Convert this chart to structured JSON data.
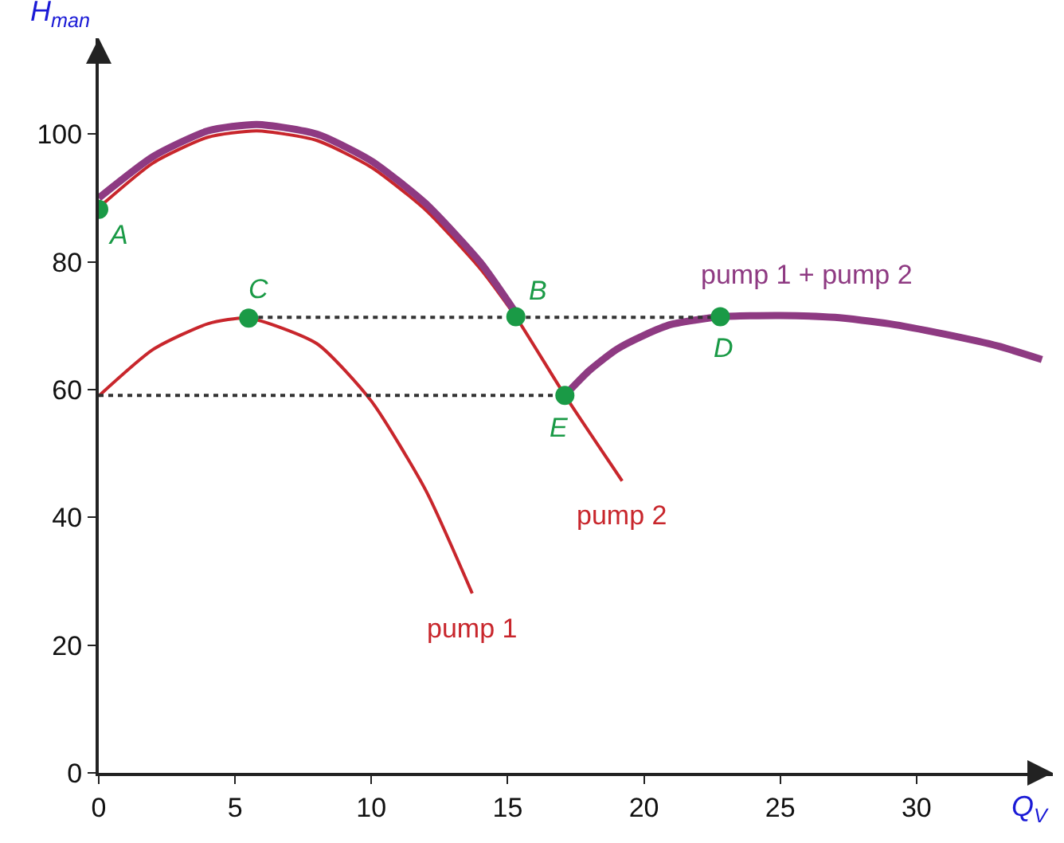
{
  "chart_data": {
    "type": "line",
    "xlabel": "Q$_{V}$",
    "ylabel": "H$_{man}$",
    "xlim": [
      0,
      35
    ],
    "ylim": [
      0,
      115
    ],
    "xticks": [
      0,
      5,
      10,
      15,
      20,
      25,
      30
    ],
    "yticks": [
      0,
      20,
      40,
      60,
      80,
      100
    ],
    "grid": false,
    "legend": false,
    "marker": "none",
    "line_style": "solid",
    "series": [
      {
        "name": "pump 1",
        "color": "#c8262c",
        "x": [
          0,
          2,
          4,
          5.5,
          8,
          10,
          12,
          13.7
        ],
        "values": [
          59,
          66.3,
          70.3,
          71.2,
          67.2,
          58.2,
          44.2,
          28.1
        ]
      },
      {
        "name": "pump 2",
        "color": "#c8262c",
        "x": [
          0,
          2,
          4,
          5.8,
          8,
          10,
          12,
          14,
          15.3,
          17.1,
          19.2
        ],
        "values": [
          88.5,
          95.5,
          99.5,
          100.5,
          99,
          94.8,
          88.1,
          78.9,
          71.4,
          59.1,
          45.7
        ]
      },
      {
        "name": "pump 1 + pump 2",
        "color": "#8e3a82",
        "x": [
          0,
          2,
          4,
          5.8,
          8,
          10,
          12,
          14,
          15.3,
          null,
          17.1,
          18,
          19,
          20,
          21,
          22.8,
          25,
          27,
          29,
          31,
          33,
          34.6
        ],
        "values": [
          90,
          96.5,
          100.5,
          101.5,
          100,
          95.8,
          89.1,
          79.9,
          72,
          null,
          59.1,
          63,
          66.3,
          68.5,
          70.2,
          71.4,
          71.6,
          71.3,
          70.3,
          68.7,
          66.8,
          64.7
        ]
      },
      {
        "type": "line",
        "line_style": "dotted",
        "color": "#333333",
        "x": [
          5.5,
          22.8
        ],
        "values": [
          71.3,
          71.3
        ]
      },
      {
        "type": "line",
        "line_style": "dotted",
        "color": "#333333",
        "x": [
          0,
          17.1
        ],
        "values": [
          59.1,
          59.1
        ]
      },
      {
        "type": "scatter",
        "marker": "circle",
        "color": "#1a9a46",
        "x": [
          0,
          15.3,
          5.5,
          22.8,
          17.1
        ],
        "values": [
          88.2,
          71.4,
          71.2,
          71.4,
          59.1
        ]
      }
    ],
    "annotations": [
      {
        "text": "A",
        "x": 0,
        "y": 88.2
      },
      {
        "text": "B",
        "x": 15.3,
        "y": 71.4
      },
      {
        "text": "C",
        "x": 5.5,
        "y": 71.2
      },
      {
        "text": "D",
        "x": 22.8,
        "y": 71.4
      },
      {
        "text": "E",
        "x": 17.1,
        "y": 59.1
      }
    ]
  }
}
